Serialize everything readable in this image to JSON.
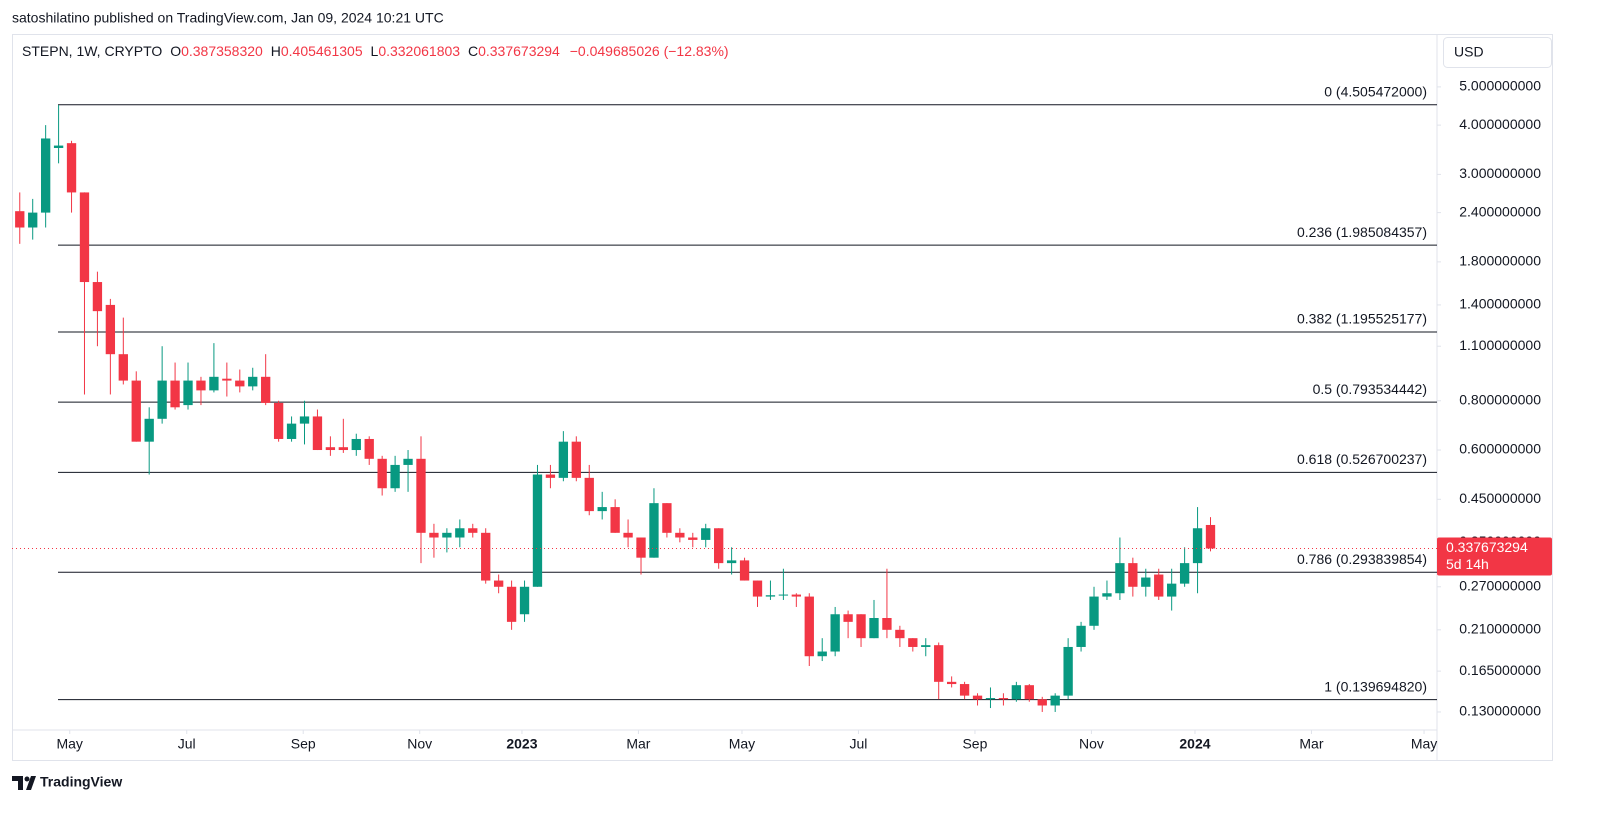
{
  "header": {
    "publisher": "satoshilatino published on TradingView.com, Jan 09, 2024 10:21 UTC",
    "footer": "TradingView",
    "currency": "USD"
  },
  "chart_data": {
    "type": "candlestick",
    "legend": {
      "symbol": "STEPN, 1W, CRYPTO",
      "o_key": "O",
      "o": "0.387358320",
      "h_key": "H",
      "h": "0.405461305",
      "l_key": "L",
      "l": "0.332061803",
      "c_key": "C",
      "c": "0.337673294",
      "change": "−0.049685026 (−12.83%)"
    },
    "up_color": "#089981",
    "down_color": "#f23645",
    "log_scale": true,
    "open": [
      2.42,
      2.2,
      2.4,
      3.5,
      3.6,
      2.7,
      1.6,
      1.4,
      1.05,
      0.9,
      0.63,
      0.72,
      0.9,
      0.78,
      0.9,
      0.85,
      0.91,
      0.9,
      0.87,
      0.92,
      0.79,
      0.64,
      0.7,
      0.73,
      0.61,
      0.61,
      0.6,
      0.64,
      0.57,
      0.48,
      0.55,
      0.57,
      0.37,
      0.36,
      0.36,
      0.38,
      0.37,
      0.28,
      0.27,
      0.23,
      0.27,
      0.52,
      0.51,
      0.63,
      0.51,
      0.42,
      0.43,
      0.37,
      0.36,
      0.32,
      0.44,
      0.37,
      0.36,
      0.355,
      0.38,
      0.31,
      0.315,
      0.28,
      0.255,
      0.257,
      0.258,
      0.255,
      0.18,
      0.185,
      0.23,
      0.23,
      0.2,
      0.225,
      0.21,
      0.2,
      0.19,
      0.192,
      0.155,
      0.153,
      0.143,
      0.14,
      0.141,
      0.14,
      0.152,
      0.14,
      0.135,
      0.143,
      0.19,
      0.215,
      0.255,
      0.26,
      0.31,
      0.27,
      0.29,
      0.255,
      0.275,
      0.31,
      0.38735832
    ],
    "high": [
      2.7,
      2.6,
      4.0,
      4.5,
      3.65,
      2.7,
      1.7,
      1.45,
      1.3,
      0.95,
      0.77,
      1.1,
      1.0,
      1.0,
      0.92,
      1.12,
      1.0,
      0.96,
      0.97,
      1.05,
      0.8,
      0.73,
      0.8,
      0.76,
      0.65,
      0.72,
      0.66,
      0.65,
      0.58,
      0.58,
      0.6,
      0.65,
      0.39,
      0.38,
      0.4,
      0.39,
      0.38,
      0.29,
      0.28,
      0.28,
      0.55,
      0.55,
      0.67,
      0.65,
      0.55,
      0.47,
      0.45,
      0.4,
      0.36,
      0.48,
      0.44,
      0.38,
      0.37,
      0.39,
      0.38,
      0.34,
      0.32,
      0.28,
      0.28,
      0.3,
      0.26,
      0.26,
      0.2,
      0.24,
      0.235,
      0.23,
      0.25,
      0.3,
      0.215,
      0.2,
      0.2,
      0.195,
      0.16,
      0.155,
      0.145,
      0.15,
      0.145,
      0.155,
      0.153,
      0.142,
      0.145,
      0.2,
      0.22,
      0.27,
      0.28,
      0.36,
      0.32,
      0.3,
      0.3,
      0.3,
      0.34,
      0.43,
      0.405461305
    ],
    "low": [
      2.0,
      2.05,
      2.2,
      3.2,
      2.4,
      0.83,
      1.1,
      0.83,
      0.88,
      0.63,
      0.52,
      0.7,
      0.76,
      0.76,
      0.78,
      0.84,
      0.82,
      0.84,
      0.85,
      0.78,
      0.63,
      0.63,
      0.62,
      0.6,
      0.58,
      0.59,
      0.58,
      0.55,
      0.46,
      0.47,
      0.47,
      0.31,
      0.32,
      0.33,
      0.34,
      0.36,
      0.275,
      0.26,
      0.21,
      0.22,
      0.27,
      0.48,
      0.5,
      0.5,
      0.41,
      0.4,
      0.37,
      0.34,
      0.29,
      0.32,
      0.36,
      0.35,
      0.34,
      0.34,
      0.3,
      0.29,
      0.28,
      0.24,
      0.25,
      0.25,
      0.24,
      0.17,
      0.175,
      0.18,
      0.2,
      0.19,
      0.2,
      0.2,
      0.19,
      0.185,
      0.18,
      0.14,
      0.15,
      0.14,
      0.135,
      0.133,
      0.135,
      0.138,
      0.138,
      0.13,
      0.13,
      0.14,
      0.185,
      0.21,
      0.25,
      0.25,
      0.255,
      0.255,
      0.25,
      0.235,
      0.27,
      0.26,
      0.332061803
    ],
    "close": [
      2.2,
      2.4,
      3.7,
      3.55,
      2.7,
      1.6,
      1.35,
      1.05,
      0.9,
      0.63,
      0.72,
      0.9,
      0.77,
      0.9,
      0.85,
      0.92,
      0.9,
      0.87,
      0.92,
      0.79,
      0.64,
      0.7,
      0.73,
      0.6,
      0.6,
      0.6,
      0.64,
      0.57,
      0.48,
      0.55,
      0.57,
      0.37,
      0.36,
      0.37,
      0.38,
      0.37,
      0.28,
      0.27,
      0.22,
      0.27,
      0.52,
      0.51,
      0.63,
      0.51,
      0.42,
      0.43,
      0.37,
      0.36,
      0.32,
      0.44,
      0.37,
      0.36,
      0.355,
      0.38,
      0.31,
      0.315,
      0.28,
      0.255,
      0.257,
      0.258,
      0.255,
      0.18,
      0.185,
      0.23,
      0.22,
      0.2,
      0.225,
      0.21,
      0.2,
      0.19,
      0.192,
      0.155,
      0.153,
      0.143,
      0.14,
      0.141,
      0.14,
      0.152,
      0.14,
      0.135,
      0.143,
      0.19,
      0.215,
      0.255,
      0.26,
      0.31,
      0.27,
      0.285,
      0.255,
      0.275,
      0.31,
      0.38,
      0.337673294
    ],
    "xlim": [
      -0.6,
      109.5
    ],
    "xticks": [
      {
        "value": 3.86,
        "label": "May"
      },
      {
        "value": 12.9,
        "label": "Jul"
      },
      {
        "value": 21.9,
        "label": "Sep"
      },
      {
        "value": 30.9,
        "label": "Nov"
      },
      {
        "value": 38.8,
        "label": "2023"
      },
      {
        "value": 47.8,
        "label": "Mar"
      },
      {
        "value": 55.8,
        "label": "May"
      },
      {
        "value": 64.8,
        "label": "Jul"
      },
      {
        "value": 73.8,
        "label": "Sep"
      },
      {
        "value": 82.8,
        "label": "Nov"
      },
      {
        "value": 90.8,
        "label": "2024"
      },
      {
        "value": 99.8,
        "label": "Mar"
      },
      {
        "value": 108.5,
        "label": "May"
      }
    ],
    "ylim": [
      0.117,
      6.77
    ],
    "yticks": [
      {
        "value": 5,
        "label": "5.000000000"
      },
      {
        "value": 4,
        "label": "4.000000000"
      },
      {
        "value": 3,
        "label": "3.000000000"
      },
      {
        "value": 2.4,
        "label": "2.400000000"
      },
      {
        "value": 1.8,
        "label": "1.800000000"
      },
      {
        "value": 1.4,
        "label": "1.400000000"
      },
      {
        "value": 1.1,
        "label": "1.100000000"
      },
      {
        "value": 0.8,
        "label": "0.800000000"
      },
      {
        "value": 0.6,
        "label": "0.600000000"
      },
      {
        "value": 0.45,
        "label": "0.450000000"
      },
      {
        "value": 0.35,
        "label": "0.350000000"
      },
      {
        "value": 0.27,
        "label": "0.270000000"
      },
      {
        "value": 0.21,
        "label": "0.210000000"
      },
      {
        "value": 0.165,
        "label": "0.165000000"
      },
      {
        "value": 0.13,
        "label": "0.130000000"
      }
    ],
    "levels": [
      {
        "value": 4.505472,
        "label": "0 (4.505472000)"
      },
      {
        "value": 1.985084357,
        "label": "0.236 (1.985084357)"
      },
      {
        "value": 1.195525177,
        "label": "0.382 (1.195525177)"
      },
      {
        "value": 0.793534442,
        "label": "0.5 (0.793534442)"
      },
      {
        "value": 0.526700237,
        "label": "0.618 (0.526700237)"
      },
      {
        "value": 0.293839854,
        "label": "0.786 (0.293839854)"
      },
      {
        "value": 0.13969482,
        "label": "1 (0.139694820)"
      }
    ],
    "last_price": {
      "value": 0.337673294,
      "label": "0.337673294"
    },
    "countdown": "5d 14h"
  }
}
